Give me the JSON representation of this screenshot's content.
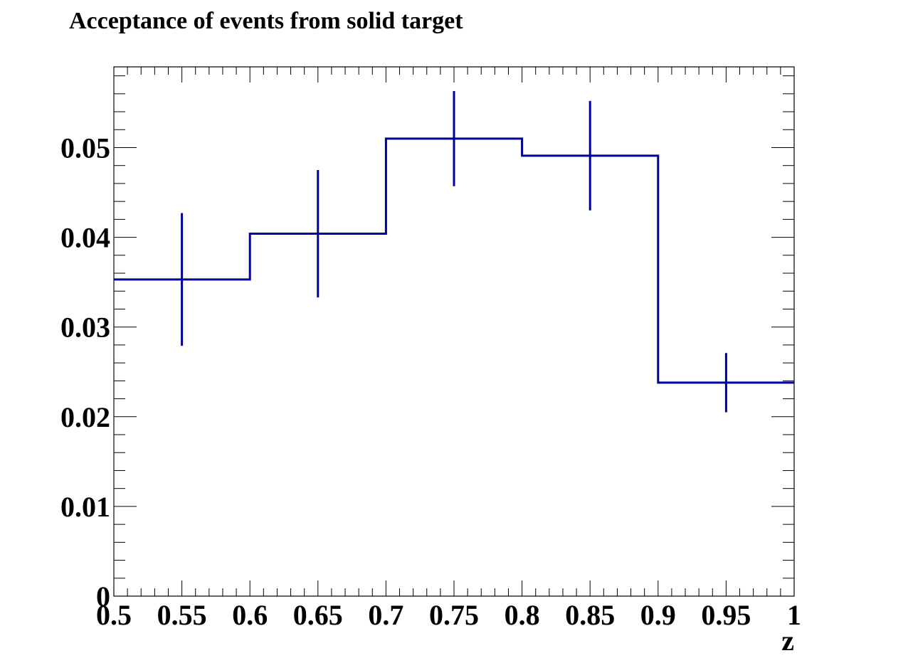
{
  "chart_data": {
    "type": "histogram",
    "title": "Acceptance of events from solid target",
    "xlabel": "z",
    "ylabel": "",
    "xlim": [
      0.5,
      1.0
    ],
    "ylim": [
      0,
      0.059
    ],
    "x_ticks": [
      "0.5",
      "0.55",
      "0.6",
      "0.65",
      "0.7",
      "0.75",
      "0.8",
      "0.85",
      "0.9",
      "0.95",
      "1"
    ],
    "y_ticks": [
      "0",
      "0.01",
      "0.02",
      "0.03",
      "0.04",
      "0.05"
    ],
    "bin_edges": [
      0.5,
      0.6,
      0.7,
      0.8,
      0.9,
      1.0
    ],
    "bin_centers": [
      0.55,
      0.65,
      0.75,
      0.85,
      0.95
    ],
    "values": [
      0.0353,
      0.0404,
      0.051,
      0.0491,
      0.0238
    ],
    "errors": [
      0.0074,
      0.0071,
      0.0053,
      0.0061,
      0.0033
    ],
    "line_color": "#000099",
    "grid": false,
    "legend": "none"
  }
}
